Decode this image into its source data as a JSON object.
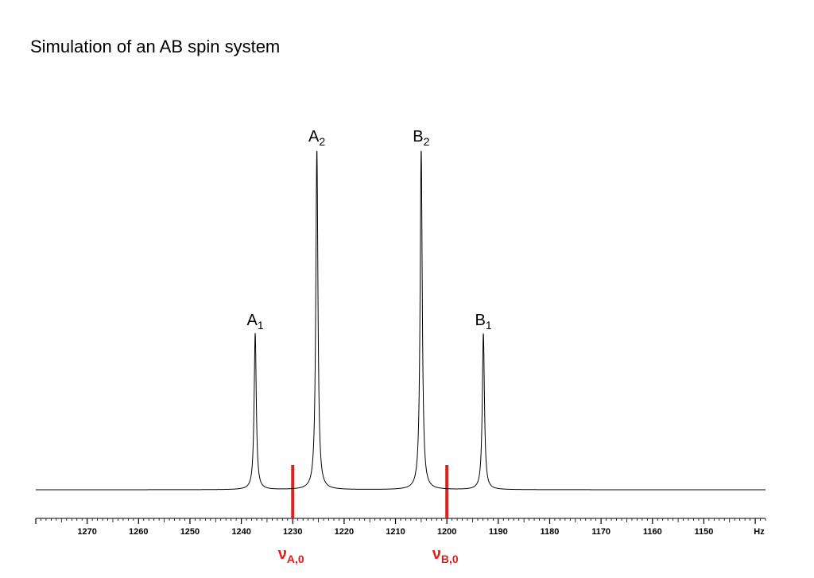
{
  "title": "Simulation of an AB spin system",
  "chart_data": {
    "type": "line",
    "title": "Simulation of an AB spin system",
    "xlabel": "Hz",
    "ylabel": "",
    "xlim": [
      1280,
      1138
    ],
    "x_reversed": true,
    "x_ticks": [
      1270,
      1260,
      1250,
      1240,
      1230,
      1220,
      1210,
      1200,
      1190,
      1180,
      1170,
      1160,
      1150
    ],
    "axis_unit_label": "Hz",
    "grid": false,
    "linewidth_hz": 0.25,
    "peaks": [
      {
        "name": "A",
        "sub": "1",
        "x": 1237.3,
        "height": 0.46
      },
      {
        "name": "A",
        "sub": "2",
        "x": 1225.3,
        "height": 1.0
      },
      {
        "name": "B",
        "sub": "2",
        "x": 1205.0,
        "height": 1.0
      },
      {
        "name": "B",
        "sub": "1",
        "x": 1192.9,
        "height": 0.46
      }
    ],
    "markers": [
      {
        "symbol": "ν",
        "sub": "A,0",
        "x": 1230,
        "color": "#e0201c"
      },
      {
        "symbol": "ν",
        "sub": "B,0",
        "x": 1200,
        "color": "#e0201c"
      }
    ]
  }
}
